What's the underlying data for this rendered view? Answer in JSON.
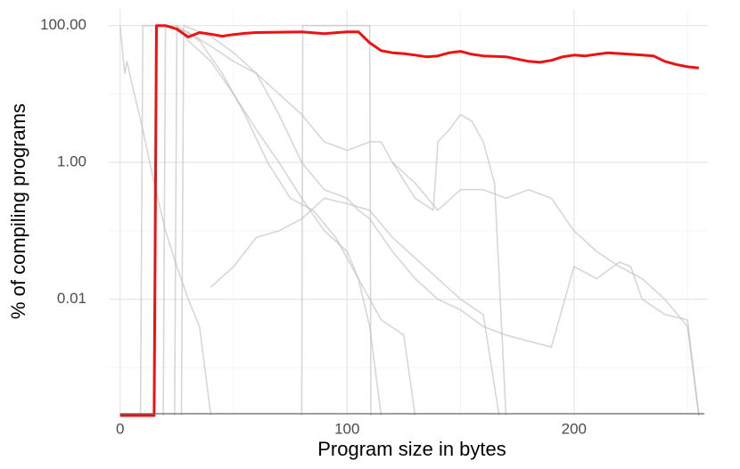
{
  "chart_data": {
    "type": "line",
    "x_label": "Program size in bytes",
    "y_label": "% of compiling programs",
    "xlim": [
      -5,
      259
    ],
    "xticks": [
      0,
      100,
      200
    ],
    "x_minor_grid": [
      50,
      150,
      250
    ],
    "ylim": [
      0.0002,
      170
    ],
    "log_y": true,
    "yticks": [
      {
        "value": 0.01,
        "label": "0.01"
      },
      {
        "value": 1,
        "label": "1.00"
      },
      {
        "value": 100,
        "label": "100.00"
      }
    ],
    "y_minor_grid": [
      0.001,
      0.1,
      10
    ],
    "grid": true,
    "series": [
      {
        "color": "#bdbdbd",
        "x": [
          0,
          2,
          3,
          5,
          10,
          15,
          20,
          25,
          30,
          35,
          40
        ],
        "values": [
          100,
          20,
          30,
          15,
          3,
          0.5,
          0.1,
          0.03,
          0.01,
          0.004,
          0.0002
        ]
      },
      {
        "color": "#bdbdbd",
        "x": [
          9,
          10,
          25,
          30,
          40,
          50,
          60,
          70,
          80,
          90,
          100,
          105,
          110,
          115
        ],
        "values": [
          0.0002,
          100,
          100,
          60,
          30,
          10,
          3,
          1,
          0.3,
          0.1,
          0.05,
          0.02,
          0.004,
          0.0002
        ]
      },
      {
        "color": "#bdbdbd",
        "x": [
          19,
          20,
          30,
          40,
          50,
          60,
          70,
          80,
          90,
          100,
          110,
          115,
          120,
          130,
          138,
          140,
          145,
          150,
          155,
          160,
          165,
          170
        ],
        "values": [
          0.0002,
          100,
          80,
          50,
          30,
          20,
          10,
          5,
          2,
          1.5,
          2,
          2,
          1,
          0.3,
          0.2,
          2,
          3,
          5,
          4,
          2,
          0.5,
          0.0002
        ]
      },
      {
        "color": "#bdbdbd",
        "x": [
          24,
          25,
          35,
          45,
          55,
          65,
          75,
          85,
          95,
          105,
          115,
          125,
          130
        ],
        "values": [
          0.0002,
          100,
          60,
          20,
          5,
          1,
          0.3,
          0.2,
          0.08,
          0.02,
          0.005,
          0.003,
          0.0002
        ]
      },
      {
        "color": "#bdbdbd",
        "x": [
          27,
          28,
          40,
          50,
          60,
          70,
          80,
          90,
          100,
          105,
          110,
          120,
          130,
          140,
          150,
          160,
          170,
          190,
          200,
          210,
          220,
          225,
          230,
          240,
          250,
          255
        ],
        "values": [
          0.0002,
          100,
          70,
          40,
          20,
          5,
          1,
          0.4,
          0.3,
          0.2,
          0.15,
          0.05,
          0.02,
          0.01,
          0.007,
          0.004,
          0.003,
          0.002,
          0.03,
          0.02,
          0.035,
          0.03,
          0.01,
          0.006,
          0.005,
          0.0002
        ]
      },
      {
        "color": "#bdbdbd",
        "x": [
          40,
          50,
          60,
          70,
          80,
          90,
          100,
          110,
          120,
          130,
          140,
          150,
          160,
          167
        ],
        "values": [
          0.015,
          0.03,
          0.08,
          0.1,
          0.15,
          0.3,
          0.25,
          0.2,
          0.08,
          0.04,
          0.02,
          0.01,
          0.006,
          0.0002
        ]
      },
      {
        "color": "#bdbdbd",
        "x": [
          80,
          80.5,
          110,
          110.5
        ],
        "values": [
          0.0002,
          100,
          100,
          0.0002
        ]
      },
      {
        "color": "#bdbdbd",
        "x": [
          120,
          130,
          140,
          150,
          160,
          170,
          180,
          190,
          200,
          210,
          220,
          230,
          240,
          250,
          255
        ],
        "values": [
          1,
          0.5,
          0.2,
          0.4,
          0.4,
          0.3,
          0.4,
          0.3,
          0.1,
          0.05,
          0.03,
          0.02,
          0.01,
          0.004,
          0.0002
        ]
      },
      {
        "color": "#ee1111",
        "x": [
          0,
          15,
          16,
          20,
          25,
          30,
          35,
          40,
          45,
          50,
          55,
          60,
          70,
          80,
          90,
          100,
          105,
          110,
          115,
          120,
          125,
          130,
          135,
          140,
          145,
          150,
          155,
          160,
          170,
          180,
          185,
          190,
          195,
          200,
          205,
          210,
          215,
          225,
          230,
          235,
          240,
          245,
          250,
          255
        ],
        "values": [
          0.0002,
          0.0002,
          100,
          100,
          89,
          68,
          79,
          75,
          70,
          74,
          77,
          79,
          80,
          81,
          76,
          81,
          81,
          56,
          43,
          40,
          39,
          37,
          35,
          36,
          40,
          42,
          38,
          36,
          35,
          30,
          29,
          31,
          35,
          37,
          36,
          38,
          40,
          38,
          37,
          36,
          30,
          27,
          25,
          24
        ]
      }
    ]
  }
}
